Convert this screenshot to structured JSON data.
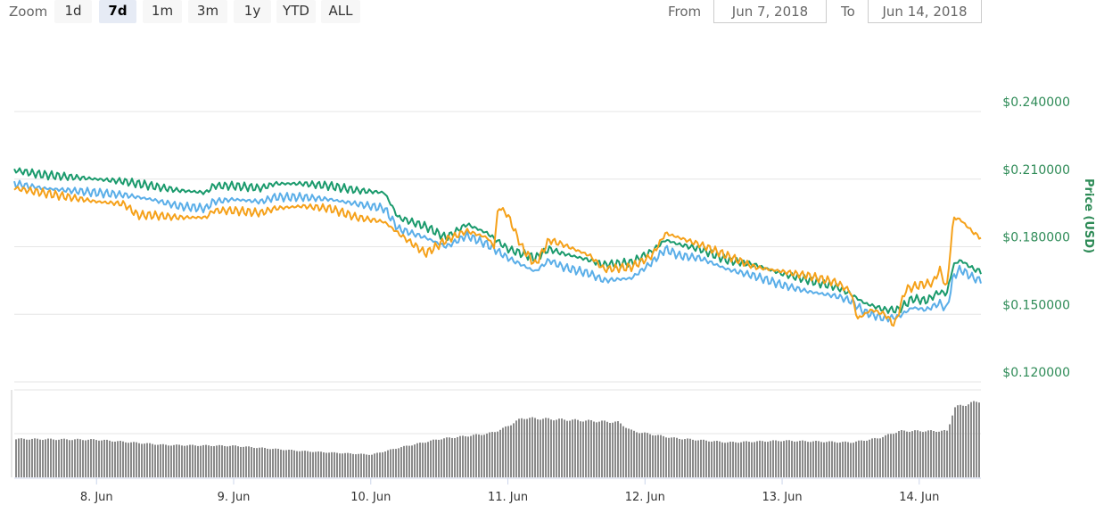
{
  "toolbar": {
    "zoom_label": "Zoom",
    "buttons": [
      {
        "label": "1d",
        "active": false
      },
      {
        "label": "7d",
        "active": true
      },
      {
        "label": "1m",
        "active": false
      },
      {
        "label": "3m",
        "active": false
      },
      {
        "label": "1y",
        "active": false
      },
      {
        "label": "YTD",
        "active": false
      },
      {
        "label": "ALL",
        "active": false
      }
    ],
    "from_label": "From",
    "from_value": "Jun 7, 2018",
    "to_label": "To",
    "to_value": "Jun 14, 2018"
  },
  "chart_data": {
    "type": "line",
    "ylabel": "Price (USD)",
    "ylim": [
      0.12,
      0.24
    ],
    "y_ticks": [
      "$0.120000",
      "$0.150000",
      "$0.180000",
      "$0.210000",
      "$0.240000"
    ],
    "y_tick_values": [
      0.12,
      0.15,
      0.18,
      0.21,
      0.24
    ],
    "x_ticks": [
      "8. Jun",
      "9. Jun",
      "10. Jun",
      "11. Jun",
      "12. Jun",
      "13. Jun",
      "14. Jun"
    ],
    "x_tick_positions": [
      8,
      9,
      10,
      11,
      12,
      13,
      14
    ],
    "xlim": [
      7.4,
      14.45
    ],
    "grid": true,
    "series": [
      {
        "color": "#1a9a6c",
        "points": [
          [
            7.4,
            0.214
          ],
          [
            7.6,
            0.212
          ],
          [
            7.8,
            0.211
          ],
          [
            8.0,
            0.21
          ],
          [
            8.2,
            0.209
          ],
          [
            8.4,
            0.207
          ],
          [
            8.6,
            0.205
          ],
          [
            8.8,
            0.204
          ],
          [
            8.85,
            0.207
          ],
          [
            9.0,
            0.207
          ],
          [
            9.2,
            0.206
          ],
          [
            9.3,
            0.208
          ],
          [
            9.5,
            0.208
          ],
          [
            9.7,
            0.207
          ],
          [
            9.9,
            0.205
          ],
          [
            10.1,
            0.204
          ],
          [
            10.2,
            0.193
          ],
          [
            10.4,
            0.189
          ],
          [
            10.55,
            0.184
          ],
          [
            10.7,
            0.19
          ],
          [
            10.85,
            0.186
          ],
          [
            11.0,
            0.179
          ],
          [
            11.1,
            0.177
          ],
          [
            11.2,
            0.175
          ],
          [
            11.3,
            0.179
          ],
          [
            11.4,
            0.177
          ],
          [
            11.6,
            0.174
          ],
          [
            11.7,
            0.172
          ],
          [
            11.9,
            0.173
          ],
          [
            12.05,
            0.178
          ],
          [
            12.15,
            0.183
          ],
          [
            12.25,
            0.181
          ],
          [
            12.4,
            0.179
          ],
          [
            12.6,
            0.174
          ],
          [
            12.8,
            0.172
          ],
          [
            13.0,
            0.168
          ],
          [
            13.2,
            0.165
          ],
          [
            13.4,
            0.162
          ],
          [
            13.5,
            0.159
          ],
          [
            13.6,
            0.155
          ],
          [
            13.75,
            0.152
          ],
          [
            13.85,
            0.152
          ],
          [
            13.95,
            0.157
          ],
          [
            14.05,
            0.156
          ],
          [
            14.15,
            0.16
          ],
          [
            14.2,
            0.159
          ],
          [
            14.25,
            0.172
          ],
          [
            14.3,
            0.174
          ],
          [
            14.4,
            0.17
          ],
          [
            14.45,
            0.169
          ]
        ]
      },
      {
        "color": "#5aaee8",
        "points": [
          [
            7.4,
            0.208
          ],
          [
            7.6,
            0.206
          ],
          [
            7.8,
            0.205
          ],
          [
            8.0,
            0.204
          ],
          [
            8.2,
            0.203
          ],
          [
            8.4,
            0.201
          ],
          [
            8.6,
            0.198
          ],
          [
            8.8,
            0.197
          ],
          [
            8.85,
            0.2
          ],
          [
            9.0,
            0.201
          ],
          [
            9.2,
            0.2
          ],
          [
            9.3,
            0.202
          ],
          [
            9.5,
            0.202
          ],
          [
            9.7,
            0.201
          ],
          [
            9.9,
            0.199
          ],
          [
            10.1,
            0.197
          ],
          [
            10.2,
            0.188
          ],
          [
            10.4,
            0.184
          ],
          [
            10.55,
            0.18
          ],
          [
            10.7,
            0.185
          ],
          [
            10.85,
            0.181
          ],
          [
            11.0,
            0.175
          ],
          [
            11.1,
            0.172
          ],
          [
            11.2,
            0.169
          ],
          [
            11.3,
            0.174
          ],
          [
            11.4,
            0.171
          ],
          [
            11.6,
            0.168
          ],
          [
            11.7,
            0.165
          ],
          [
            11.9,
            0.166
          ],
          [
            12.05,
            0.173
          ],
          [
            12.15,
            0.179
          ],
          [
            12.25,
            0.176
          ],
          [
            12.4,
            0.175
          ],
          [
            12.6,
            0.17
          ],
          [
            12.8,
            0.167
          ],
          [
            13.0,
            0.163
          ],
          [
            13.2,
            0.16
          ],
          [
            13.4,
            0.158
          ],
          [
            13.5,
            0.156
          ],
          [
            13.6,
            0.151
          ],
          [
            13.75,
            0.148
          ],
          [
            13.85,
            0.149
          ],
          [
            13.95,
            0.153
          ],
          [
            14.05,
            0.152
          ],
          [
            14.15,
            0.155
          ],
          [
            14.2,
            0.152
          ],
          [
            14.25,
            0.167
          ],
          [
            14.3,
            0.17
          ],
          [
            14.4,
            0.166
          ],
          [
            14.45,
            0.165
          ]
        ]
      },
      {
        "color": "#f5a11a",
        "points": [
          [
            7.4,
            0.206
          ],
          [
            7.6,
            0.204
          ],
          [
            7.8,
            0.202
          ],
          [
            8.0,
            0.2
          ],
          [
            8.2,
            0.199
          ],
          [
            8.3,
            0.194
          ],
          [
            8.4,
            0.194
          ],
          [
            8.6,
            0.193
          ],
          [
            8.8,
            0.193
          ],
          [
            8.85,
            0.196
          ],
          [
            9.0,
            0.196
          ],
          [
            9.2,
            0.195
          ],
          [
            9.3,
            0.197
          ],
          [
            9.5,
            0.198
          ],
          [
            9.7,
            0.197
          ],
          [
            9.9,
            0.193
          ],
          [
            10.1,
            0.191
          ],
          [
            10.2,
            0.186
          ],
          [
            10.4,
            0.177
          ],
          [
            10.55,
            0.183
          ],
          [
            10.7,
            0.187
          ],
          [
            10.85,
            0.184
          ],
          [
            10.9,
            0.18
          ],
          [
            10.93,
            0.198
          ],
          [
            11.0,
            0.194
          ],
          [
            11.1,
            0.18
          ],
          [
            11.2,
            0.172
          ],
          [
            11.3,
            0.183
          ],
          [
            11.4,
            0.181
          ],
          [
            11.6,
            0.176
          ],
          [
            11.7,
            0.17
          ],
          [
            11.9,
            0.171
          ],
          [
            12.05,
            0.176
          ],
          [
            12.15,
            0.186
          ],
          [
            12.25,
            0.184
          ],
          [
            12.4,
            0.181
          ],
          [
            12.6,
            0.176
          ],
          [
            12.8,
            0.171
          ],
          [
            13.0,
            0.169
          ],
          [
            13.2,
            0.167
          ],
          [
            13.4,
            0.164
          ],
          [
            13.5,
            0.16
          ],
          [
            13.55,
            0.148
          ],
          [
            13.65,
            0.152
          ],
          [
            13.75,
            0.15
          ],
          [
            13.82,
            0.145
          ],
          [
            13.9,
            0.161
          ],
          [
            14.0,
            0.163
          ],
          [
            14.1,
            0.164
          ],
          [
            14.15,
            0.17
          ],
          [
            14.2,
            0.161
          ],
          [
            14.25,
            0.193
          ],
          [
            14.3,
            0.192
          ],
          [
            14.4,
            0.186
          ],
          [
            14.45,
            0.184
          ]
        ]
      }
    ],
    "volume_bars": [
      [
        7.4,
        0.44
      ],
      [
        8.0,
        0.43
      ],
      [
        8.5,
        0.37
      ],
      [
        9.0,
        0.36
      ],
      [
        9.5,
        0.3
      ],
      [
        10.0,
        0.26
      ],
      [
        10.2,
        0.34
      ],
      [
        10.5,
        0.44
      ],
      [
        10.85,
        0.5
      ],
      [
        10.95,
        0.55
      ],
      [
        11.1,
        0.68
      ],
      [
        11.4,
        0.66
      ],
      [
        11.8,
        0.63
      ],
      [
        11.9,
        0.53
      ],
      [
        12.2,
        0.45
      ],
      [
        12.6,
        0.4
      ],
      [
        13.0,
        0.42
      ],
      [
        13.5,
        0.4
      ],
      [
        13.7,
        0.45
      ],
      [
        13.85,
        0.53
      ],
      [
        14.2,
        0.53
      ],
      [
        14.25,
        0.8
      ],
      [
        14.45,
        0.88
      ]
    ]
  }
}
